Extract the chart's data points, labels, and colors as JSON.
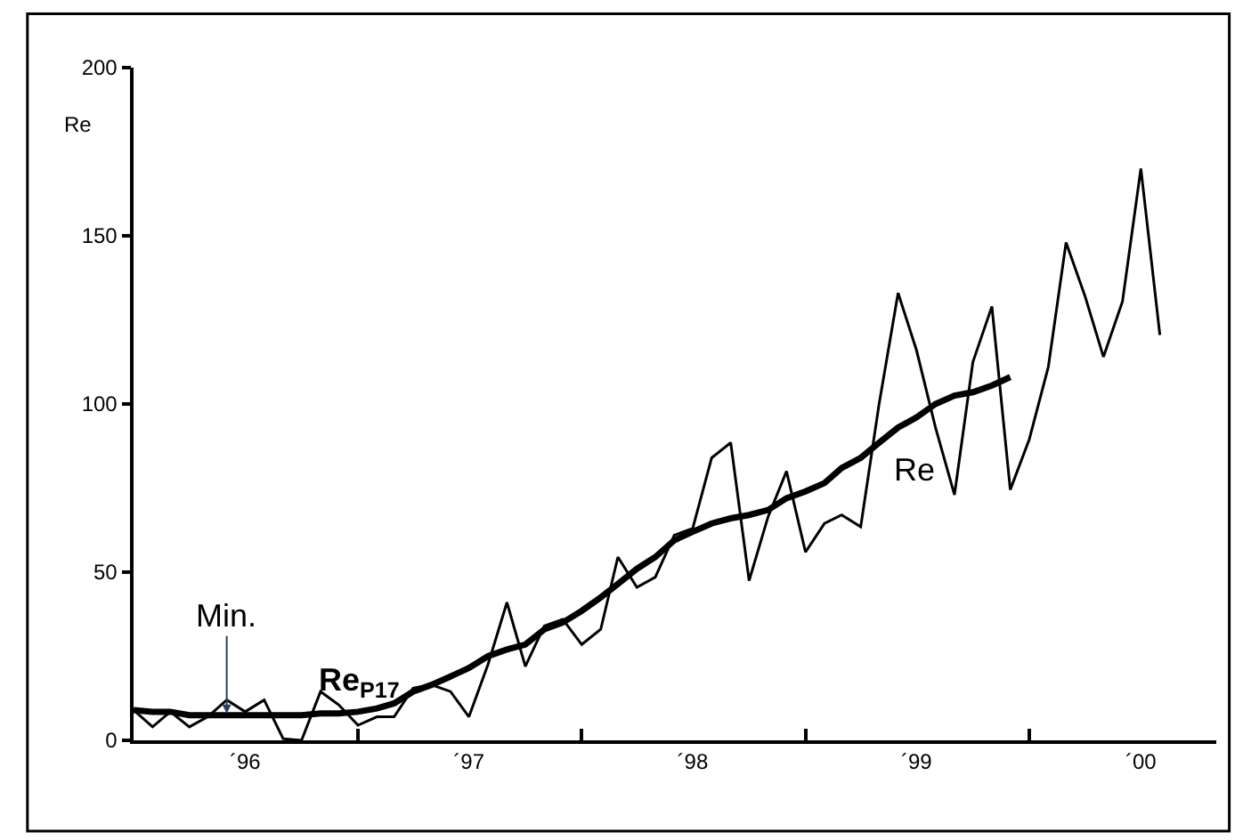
{
  "chart_data": {
    "type": "line",
    "ylabel": "Re",
    "x": [
      "1996-01",
      "1996-02",
      "1996-03",
      "1996-04",
      "1996-05",
      "1996-06",
      "1996-07",
      "1996-08",
      "1996-09",
      "1996-10",
      "1996-11",
      "1996-12",
      "1997-01",
      "1997-02",
      "1997-03",
      "1997-04",
      "1997-05",
      "1997-06",
      "1997-07",
      "1997-08",
      "1997-09",
      "1997-10",
      "1997-11",
      "1997-12",
      "1998-01",
      "1998-02",
      "1998-03",
      "1998-04",
      "1998-05",
      "1998-06",
      "1998-07",
      "1998-08",
      "1998-09",
      "1998-10",
      "1998-11",
      "1998-12",
      "1999-01",
      "1999-02",
      "1999-03",
      "1999-04",
      "1999-05",
      "1999-06",
      "1999-07",
      "1999-08",
      "1999-09",
      "1999-10",
      "1999-11",
      "1999-12",
      "2000-01",
      "2000-02",
      "2000-03",
      "2000-04",
      "2000-05",
      "2000-06",
      "2000-07",
      "2000-08"
    ],
    "series": [
      {
        "name": "Re",
        "color": "#000000",
        "values": [
          9,
          4,
          8.5,
          4,
          7,
          12,
          8.5,
          12,
          0.5,
          0,
          14.5,
          10.5,
          4.5,
          7,
          7,
          15.5,
          16.5,
          14.5,
          7,
          22.5,
          41,
          22,
          34,
          36,
          28.5,
          33,
          54.5,
          45.5,
          48.5,
          61,
          63,
          84,
          88.5,
          47.5,
          66.5,
          80,
          56,
          64.5,
          67,
          63.5,
          100,
          133,
          116,
          93,
          73,
          112.5,
          129,
          74.5,
          89.5,
          111,
          148,
          132,
          114,
          130.5,
          170,
          120.5
        ]
      },
      {
        "name": "Re$_{P17}$",
        "color": "#000000",
        "x": [
          "1996-01",
          "1996-02",
          "1996-03",
          "1996-04",
          "1996-05",
          "1996-06",
          "1996-07",
          "1996-08",
          "1996-09",
          "1996-10",
          "1996-11",
          "1996-12",
          "1997-01",
          "1997-02",
          "1997-03",
          "1997-04",
          "1997-05",
          "1997-06",
          "1997-07",
          "1997-08",
          "1997-09",
          "1997-10",
          "1997-11",
          "1997-12",
          "1998-01",
          "1998-02",
          "1998-03",
          "1998-04",
          "1998-05",
          "1998-06",
          "1998-07",
          "1998-08",
          "1998-09",
          "1998-10",
          "1998-11",
          "1998-12",
          "1999-01",
          "1999-02",
          "1999-03",
          "1999-04",
          "1999-05",
          "1999-06",
          "1999-07",
          "1999-08",
          "1999-09",
          "1999-10",
          "1999-11",
          "1999-12"
        ],
        "values": [
          9,
          8.5,
          8.5,
          7.5,
          7.5,
          7.5,
          7.5,
          7.5,
          7.5,
          7.5,
          8,
          8,
          8.5,
          9.5,
          11,
          14.5,
          16.5,
          19,
          21.5,
          25,
          27,
          28.5,
          33,
          35,
          38.5,
          42.5,
          46.5,
          51,
          54.5,
          59.5,
          62,
          64.5,
          66,
          67,
          68.5,
          72,
          74,
          76.5,
          81,
          84,
          88.5,
          93,
          96,
          100,
          102.5,
          103.5,
          105.5,
          108
        ]
      }
    ],
    "annotations": [
      {
        "text": "Min.",
        "x": "1996-06",
        "y": 8
      }
    ],
    "xlim": [
      "1996-01",
      "2000-11"
    ],
    "xticks": [
      {
        "value": "1996-07",
        "label": "´96"
      },
      {
        "value": "1997-01",
        "label": null
      },
      {
        "value": "1997-07",
        "label": "´97"
      },
      {
        "value": "1998-01",
        "label": null
      },
      {
        "value": "1998-07",
        "label": "´98"
      },
      {
        "value": "1999-01",
        "label": null
      },
      {
        "value": "1999-07",
        "label": "´99"
      },
      {
        "value": "2000-01",
        "label": null
      },
      {
        "value": "2000-07",
        "label": "´00"
      }
    ],
    "ylim": [
      0,
      200
    ],
    "yticks": [
      0,
      50,
      100,
      150,
      200
    ],
    "legend": false,
    "marker": "none",
    "line_style": "solid"
  }
}
